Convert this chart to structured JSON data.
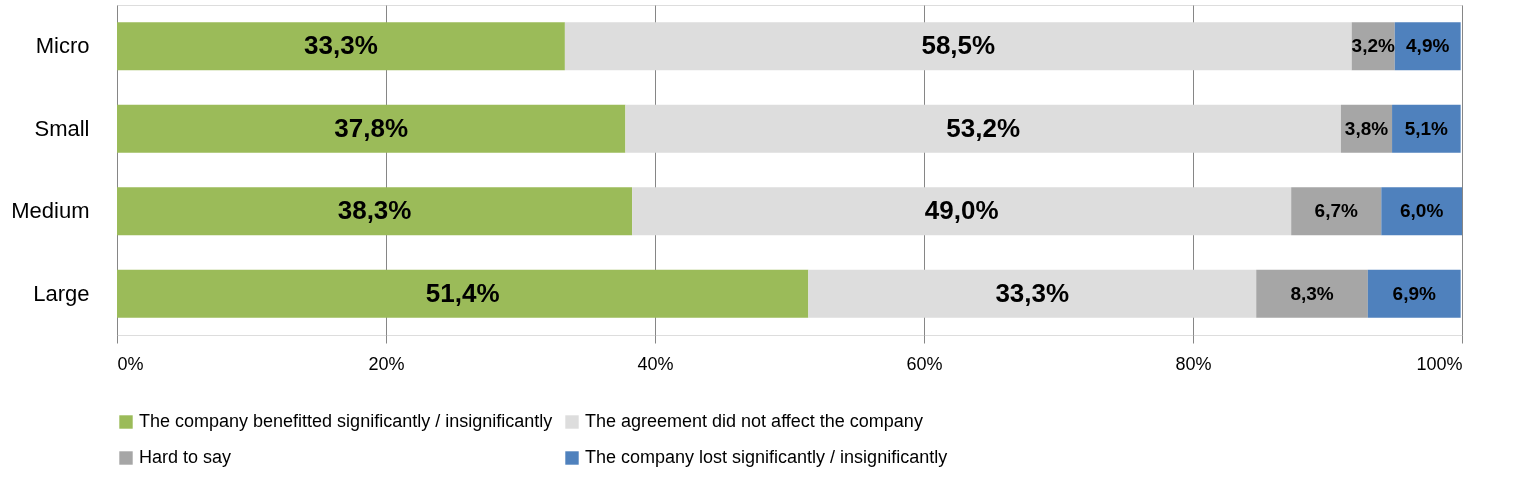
{
  "chart_data": {
    "type": "bar",
    "orientation": "horizontal",
    "stacked": true,
    "categories": [
      "Micro",
      "Small",
      "Medium",
      "Large"
    ],
    "series": [
      {
        "name": "The company benefitted significantly / insignificantly",
        "color": "#9bbb59",
        "values": [
          33.3,
          37.8,
          38.3,
          51.4
        ],
        "value_labels": [
          "33,3%",
          "37,8%",
          "38,3%",
          "51,4%"
        ]
      },
      {
        "name": "The agreement did not affect the company",
        "color": "#dddddd",
        "values": [
          58.5,
          53.2,
          49.0,
          33.3
        ],
        "value_labels": [
          "58,5%",
          "53,2%",
          "49,0%",
          "33,3%"
        ]
      },
      {
        "name": "Hard to say",
        "color": "#a6a6a6",
        "values": [
          3.2,
          3.8,
          6.7,
          8.3
        ],
        "value_labels": [
          "3,2%",
          "3,8%",
          "6,7%",
          "8,3%"
        ]
      },
      {
        "name": "The company lost significantly / insignificantly",
        "color": "#4f81bd",
        "values": [
          4.9,
          5.1,
          6.0,
          6.9
        ],
        "value_labels": [
          "4,9%",
          "5,1%",
          "6,0%",
          "6,9%"
        ]
      }
    ],
    "xlim": [
      0,
      100
    ],
    "xticks": [
      {
        "value": 0,
        "label": "0%"
      },
      {
        "value": 20,
        "label": "20%"
      },
      {
        "value": 40,
        "label": "40%"
      },
      {
        "value": 60,
        "label": "60%"
      },
      {
        "value": 80,
        "label": "80%"
      },
      {
        "value": 100,
        "label": "100%"
      }
    ],
    "grid": "x",
    "legend": "bottom"
  }
}
